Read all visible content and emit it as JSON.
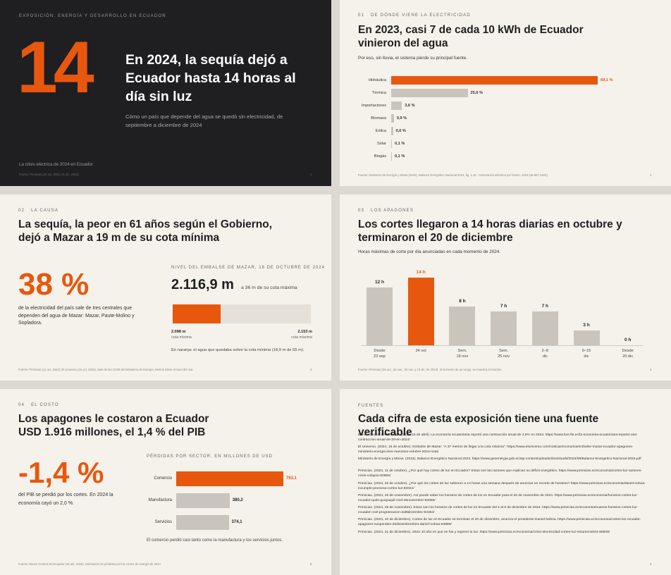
{
  "s1": {
    "kicker": "EXPOSICIÓN: ENERGÍA Y DESARROLLO EN ECUADOR",
    "big_number": "14",
    "title": "En 2024, la sequía dejó a Ecuador hasta 14 horas al día sin luz",
    "subtitle": "Cómo un país que depende del agua se quedó sin electricidad, de septiembre a diciembre de 2024",
    "footer_label": "La crisis eléctrica de 2024 en Ecuador",
    "source": "Fuente: Primicias (26 oct. 2024; 31 dic. 2024)",
    "page": "1"
  },
  "s2": {
    "kicker_num": "01",
    "kicker": "DE DÓNDE VIENE LA ELECTRICIDAD",
    "title": "En 2023, casi 7 de cada 10 kWh de Ecuador vinieron del agua",
    "subtitle": "Por eso, sin lluvia, el sistema pierde su principal fuente.",
    "source": "Fuente: Ministerio de Energía y Minas (2024), Balance Energético Nacional 2023, fig. 1.40 · Generación eléctrica por fuente, 2023 (36.887 GWh)",
    "page": "2"
  },
  "s3": {
    "kicker_num": "02",
    "kicker": "LA CAUSA",
    "title": "La sequía, la peor en 61 años según el Gobierno, dejó a Mazar a 19 m de su cota mínima",
    "big_stat": "38 %",
    "stat_text": "de la electricidad del país sale de tres centrales que dependen del agua de Mazar: Mazar, Paute-Molino y Sopladora.",
    "level_label": "NIVEL DEL EMBALSE DE MAZAR, 16 DE OCTUBRE DE 2024",
    "level_value": "2.116,9 m",
    "level_note": "a 36 m de su cota máxima",
    "level_fraction": 0.345,
    "min_value": "2.098 m",
    "min_label": "cota mínima",
    "max_value": "2.153 m",
    "max_label": "cota máxima",
    "note": "En naranja: el agua que quedaba sobre la cota mínima (18,9 m de 55 m).",
    "source": "Fuente: Primicias (11 oct. 2024); El Universo (16 oct. 2024), dato de las 15:00 del Ministerio de Energía. Metros sobre el nivel del mar.",
    "page": "3"
  },
  "s4": {
    "kicker_num": "03",
    "kicker": "LOS APAGONES",
    "title": "Los cortes llegaron a 14 horas diarias en octubre y terminaron el 20 de diciembre",
    "subtitle": "Horas máximas de corte por día anunciadas en cada momento de 2024.",
    "source": "Fuente: Primicias (26 oct., 25 nov., 29 nov. y 10 dic. de 2024). Si la fuente da un rango, se muestra el máximo.",
    "page": "4"
  },
  "s5": {
    "kicker_num": "04",
    "kicker": "EL COSTO",
    "title": "Los apagones le costaron a Ecuador USD 1.916 millones, el 1,4 % del PIB",
    "big_stat": "-1,4 %",
    "stat_text": "del PIB se perdió por los cortes. En 2024 la economía cayó un 2,0 %.",
    "chart_label": "PÉRDIDAS POR SECTOR, EN MILLONES DE USD",
    "note": "El comercio perdió casi tanto como la manufactura y los servicios juntos.",
    "source": "Fuente: Banco Central del Ecuador (15 abr. 2025), estimación de pérdidas por los cortes de energía de 2024",
    "page": "5"
  },
  "s6": {
    "kicker": "FUENTES",
    "title": "Cada cifra de esta exposición tiene una fuente verificable",
    "refs": [
      "Banco Central del Ecuador. (2025, 15 de abril). La economía ecuatoriana reportó una contracción anual de 2,0% en 2024. https://www.bce.fin.ec/la-economia-ecuatoriana-reporto-una-contraccion-anual-de-20-en-2024/",
      "El Universo. (2024, 16 de octubre). Embalse de Mazar: \"A 37 metros de llegar a la cota máxima\". https://www.eluniverso.com/noticias/economia/embalse-mazar-ecuador-apagones-ministerio-energia-ines-manzano-octubre-2024-nota/",
      "Ministerio de Energía y Minas. (2024). Balance Energético Nacional 2023. https://www.geoenergia.gob.ec/wp-content/uploads/downloads/2024/08/Balance-Energetico-Nacional-2023.pdf",
      "Primicias. (2024, 11 de octubre). ¿Por qué hay cortes de luz en Ecuador? Estas son las razones que explican su déficit energético. https://www.primicias.ec/economia/cortes-luz-razones-crisis-colapso-80955/",
      "Primicias. (2024, 26 de octubre). ¿Por qué los cortes de luz subieron a 14 horas una semana después de anunciar un recorte de horarios? https://www.primicias.ec/economia/daniel-noboa-incumple-promesa-cortes-luz-82021/",
      "Primicias. (2024, 25 de noviembre). Así puede saber los horarios de cortes de luz en Ecuador para el 26 de noviembre de 2024. https://www.primicias.ec/economia/horarios-cortes-luz-ecuador-quito-guayaquil-cnel-26noviembre-84055/",
      "Primicias. (2024, 29 de noviembre). Estos son los horarios de cortes de luz en Ecuador del 2 al 8 de diciembre de 2024. https://www.primicias.ec/economia/nuevos-horarios-cortes-luz-ecuador-cnel-programacion-2al8diciembre-84364/",
      "Primicias. (2024, 10 de diciembre). Cortes de luz en Ecuador se terminan el 20 de diciembre, anuncia el presidente Daniel Noboa. https://www.primicias.ec/economia/cortes-luz-ecuador-apagones-suspenden-20diciembre2024-daniel-noboa-84999/",
      "Primicias. (2024, 31 de diciembre). 2024: El año en que se fue y regresó la luz. https://www.primicias.ec/economia/crisis-electricidad-cortes-luz-resumen2024-86508/"
    ],
    "page": "6"
  },
  "colors": {
    "accent": "#e8570e",
    "bar_gray": "#c9c4bc",
    "dark": "#1f1f22",
    "cream": "#f5f2eb"
  },
  "chart_data": [
    {
      "type": "bar",
      "orientation": "horizontal",
      "categories": [
        "Hidráulica",
        "Térmica",
        "Importaciones",
        "Biomasa",
        "Eólica",
        "Solar",
        "Biogás"
      ],
      "values": [
        69.1,
        25.6,
        3.6,
        0.9,
        0.6,
        0.1,
        0.1
      ],
      "labels": [
        "69,1 %",
        "25,6 %",
        "3,6 %",
        "0,9 %",
        "0,6 %",
        "0,1 %",
        "0,1 %"
      ],
      "highlight": 0
    },
    {
      "type": "bar",
      "orientation": "vertical",
      "categories": [
        [
          "Desde",
          "23 sep"
        ],
        [
          "24 oct",
          ""
        ],
        [
          "Sem.",
          "18 nov"
        ],
        [
          "Sem.",
          "25 nov"
        ],
        [
          "2–8",
          "dic"
        ],
        [
          "9–15",
          "dic"
        ],
        [
          "Desde",
          "20 dic"
        ]
      ],
      "values": [
        12,
        14,
        8,
        7,
        7,
        3,
        0
      ],
      "labels": [
        "12 h",
        "14 h",
        "8 h",
        "7 h",
        "7 h",
        "3 h",
        "0 h"
      ],
      "highlight": 1
    },
    {
      "type": "bar",
      "orientation": "horizontal",
      "categories": [
        "Comercio",
        "Manufactura",
        "Servicios"
      ],
      "values": [
        763.1,
        380.2,
        374.1
      ],
      "labels": [
        "763,1",
        "380,2",
        "374,1"
      ],
      "highlight": 0
    }
  ]
}
